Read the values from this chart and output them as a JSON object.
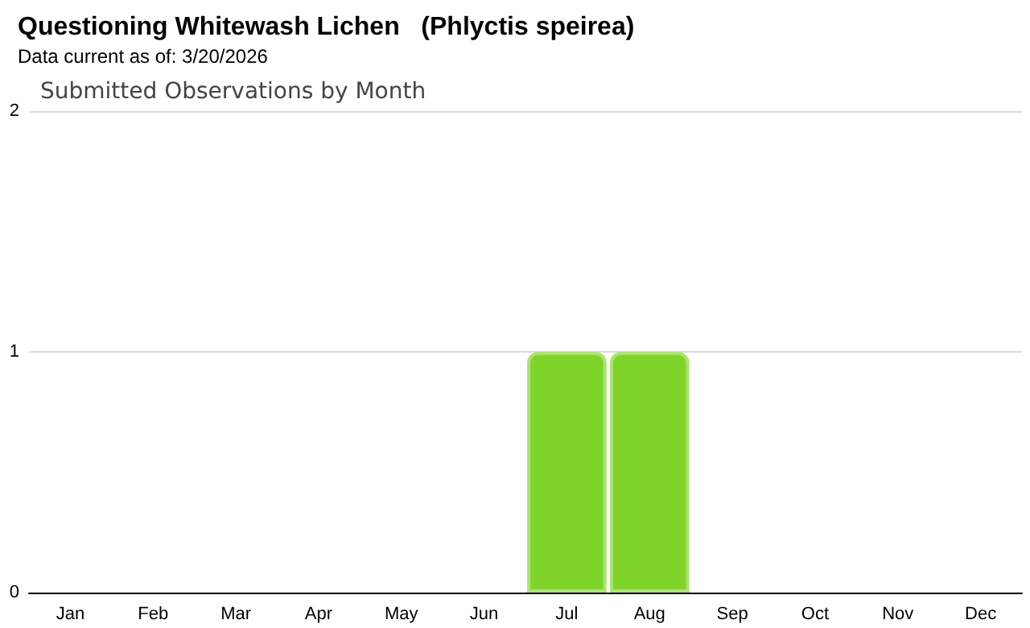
{
  "chart_data": {
    "type": "bar",
    "title": "Questioning Whitewash Lichen   (Phlyctis speirea)",
    "subtitle": "Data current as of: 3/20/2026",
    "annotations": [
      "Submitted Observations by Month"
    ],
    "categories": [
      "Jan",
      "Feb",
      "Mar",
      "Apr",
      "May",
      "Jun",
      "Jul",
      "Aug",
      "Sep",
      "Oct",
      "Nov",
      "Dec"
    ],
    "values": [
      0,
      0,
      0,
      0,
      0,
      0,
      1,
      1,
      0,
      0,
      0,
      0
    ],
    "color": "#7fd42a",
    "ylim": [
      0,
      2
    ],
    "yticks": [
      0,
      1,
      2
    ],
    "grid": "y"
  }
}
